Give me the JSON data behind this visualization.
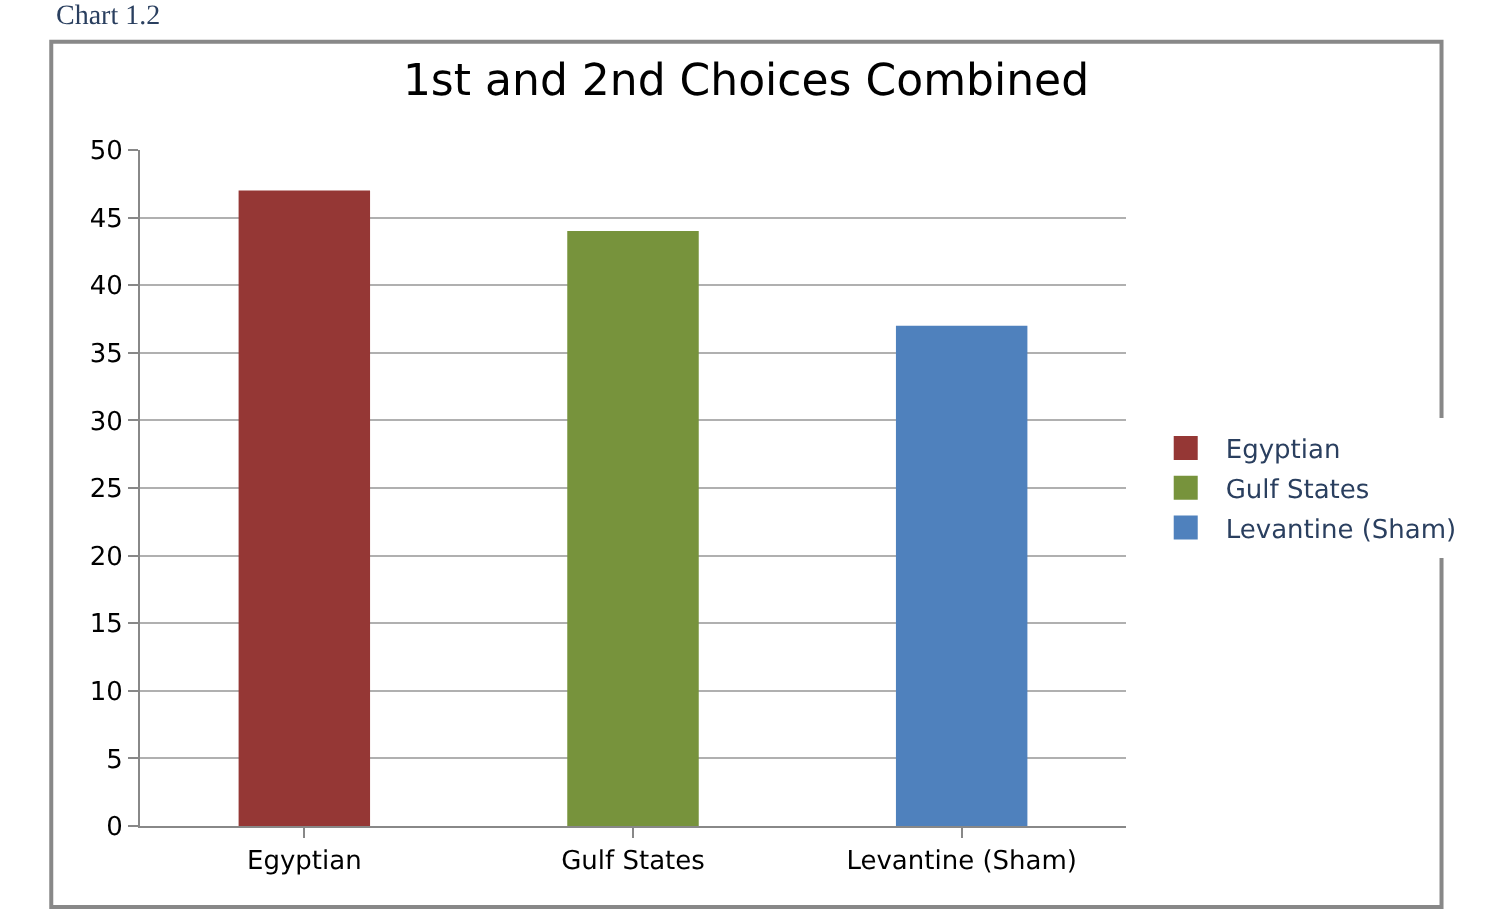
{
  "chart_data": {
    "type": "bar",
    "title": "1st and 2nd Choices Combined",
    "annotations": [
      "Chart 1.2"
    ],
    "categories": [
      "Egyptian",
      "Gulf States",
      "Levantine (Sham)"
    ],
    "series": [
      {
        "name": "Egyptian",
        "color": "#953735",
        "values": [
          47,
          null,
          null
        ]
      },
      {
        "name": "Gulf States",
        "color": "#77933c",
        "values": [
          null,
          44,
          null
        ]
      },
      {
        "name": "Levantine (Sham)",
        "color": "#4f81bd",
        "values": [
          null,
          null,
          37
        ]
      }
    ],
    "ylim": [
      0,
      50
    ],
    "yticks": [
      0,
      5,
      10,
      15,
      20,
      25,
      30,
      35,
      40,
      45,
      50
    ],
    "grid": "y",
    "legend": "right"
  }
}
